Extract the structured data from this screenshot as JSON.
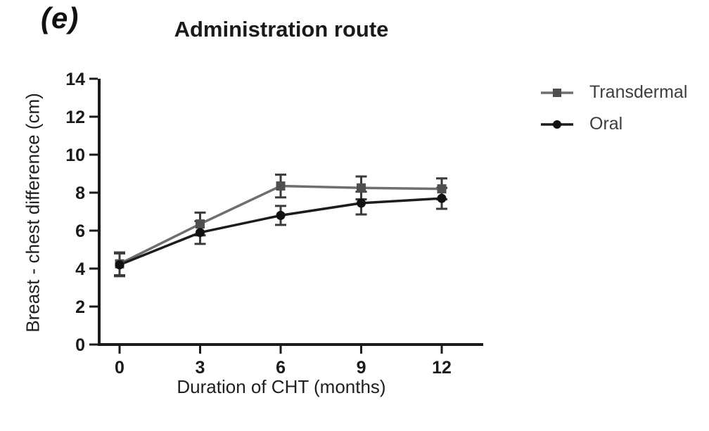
{
  "panel_label": "(e)",
  "chart_data": {
    "type": "line",
    "title": "Administration route",
    "xlabel": "Duration of CHT (months)",
    "ylabel": "Breast - chest difference (cm)",
    "x": [
      0,
      3,
      6,
      9,
      12
    ],
    "xticks": [
      0,
      3,
      6,
      9,
      12
    ],
    "yticks": [
      0,
      2,
      4,
      6,
      8,
      10,
      12,
      14
    ],
    "xlim": [
      0,
      13.5
    ],
    "ylim": [
      0,
      14
    ],
    "grid": false,
    "legend_position": "right",
    "series": [
      {
        "name": "Transdermal",
        "marker": "square",
        "line_color": "#6e6e6e",
        "marker_color": "#4f4f4f",
        "values": [
          4.25,
          6.35,
          8.35,
          8.25,
          8.2
        ],
        "errors": [
          0.6,
          0.6,
          0.6,
          0.6,
          0.55
        ]
      },
      {
        "name": "Oral",
        "marker": "circle",
        "line_color": "#1c1c1c",
        "marker_color": "#111111",
        "values": [
          4.2,
          5.9,
          6.8,
          7.45,
          7.7
        ],
        "errors": [
          0.6,
          0.6,
          0.5,
          0.6,
          0.55
        ]
      }
    ],
    "error_bar_color": "#3a3a3a",
    "axis_color": "#1a1a1a"
  }
}
